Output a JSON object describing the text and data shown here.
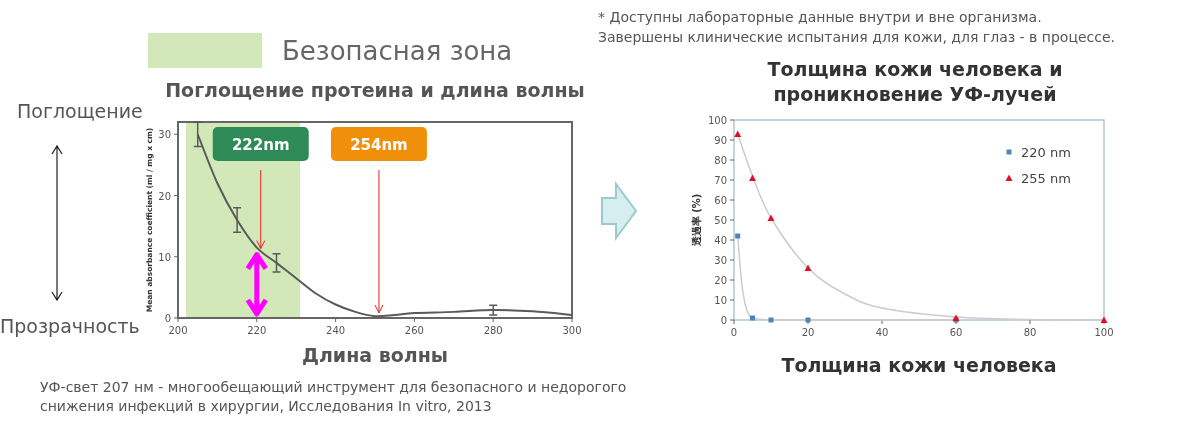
{
  "chart_data": [
    {
      "type": "line",
      "title": "Поглощение протеина и длина волны",
      "xlabel": "Длина волны",
      "ylabel": "Mean absorbance coefficient (ml / mg x cm)",
      "xlim": [
        200,
        300
      ],
      "ylim": [
        0,
        32
      ],
      "xticks": [
        200,
        220,
        240,
        260,
        280,
        300
      ],
      "yticks": [
        0,
        10,
        20,
        30
      ],
      "marker": "none",
      "line_style": "solid",
      "series": [
        {
          "color": "#5a5a5a",
          "x": [
            205,
            210,
            215,
            220,
            225,
            230,
            235,
            240,
            245,
            250,
            255,
            260,
            270,
            280,
            290,
            300
          ],
          "values": [
            30,
            22,
            16,
            11.5,
            9,
            6.5,
            4,
            2.2,
            1,
            0.3,
            0.5,
            0.8,
            1,
            1.3,
            1.1,
            0.5
          ],
          "errors": [
            2,
            null,
            2,
            null,
            1.5,
            null,
            null,
            null,
            null,
            null,
            null,
            null,
            null,
            0.8,
            null,
            null
          ]
        }
      ],
      "bands": [
        {
          "axis": "x",
          "from": 202,
          "to": 231,
          "label": "Безопасная зона",
          "color": "#d3e8b8"
        }
      ],
      "annotations": [
        {
          "text": "222nm",
          "x": 221,
          "y": 11
        },
        {
          "text": "254nm",
          "x": 251,
          "y": 0.5
        },
        "Поглощение",
        "Прозрачность",
        "УФ-свет 207 нм - многообещающий инструмент для безопасного и недорогого снижения инфекций в хирургии, Исследования  In vitro, 2013"
      ]
    },
    {
      "type": "scatter",
      "title": "Толщина кожи человека и проникновение УФ-лучей",
      "xlabel": "Толщина кожи человека",
      "ylabel": "透過率 (%)",
      "xlim": [
        0,
        100
      ],
      "ylim": [
        0,
        100
      ],
      "xticks": [
        0,
        20,
        40,
        60,
        80,
        100
      ],
      "yticks": [
        0,
        10,
        20,
        30,
        40,
        50,
        60,
        70,
        80,
        90,
        100
      ],
      "legend": "top right",
      "series": [
        {
          "type": "line",
          "color": "#cccccc",
          "x": [
            1,
            2,
            3,
            4,
            5,
            10,
            20,
            60
          ],
          "values": [
            42,
            20,
            8,
            3,
            1,
            0,
            0,
            0
          ]
        },
        {
          "type": "line",
          "color": "#cccccc",
          "x": [
            1,
            5,
            10,
            20,
            30,
            40,
            60,
            80,
            100
          ],
          "values": [
            93,
            72,
            51,
            26,
            13,
            6,
            1.5,
            0.3,
            0
          ]
        },
        {
          "name": "220 nm",
          "color": "#4f81bd",
          "marker": "square",
          "x": [
            1,
            5,
            10,
            20,
            60
          ],
          "values": [
            42,
            1,
            0,
            0,
            0
          ]
        },
        {
          "name": "255 nm",
          "color": "#e0102a",
          "marker": "triangle",
          "x": [
            1,
            5,
            10,
            20,
            60,
            100
          ],
          "values": [
            93,
            71,
            51,
            26,
            1,
            0
          ]
        }
      ],
      "annotations": [
        "* Доступны лабораторные данные внутри и вне организма.",
        "Завершены клинические испытания для кожи, для глаз - в процессе."
      ]
    }
  ]
}
